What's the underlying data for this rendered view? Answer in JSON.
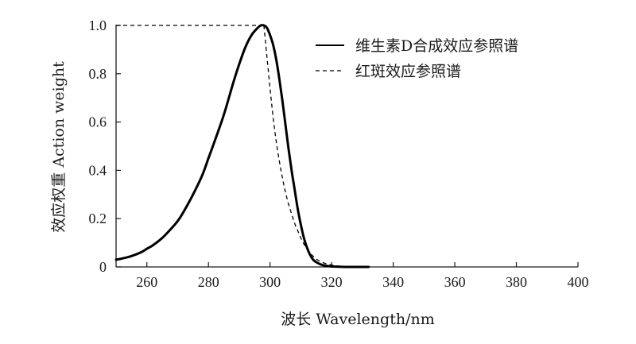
{
  "chart_data": {
    "type": "line",
    "title": "",
    "xlabel": "波长 Wavelength/nm",
    "ylabel": "效应权重  Action weight",
    "xlim": [
      250,
      400
    ],
    "ylim": [
      0,
      1.0
    ],
    "x_ticks": [
      "260",
      "280",
      "300",
      "320",
      "340",
      "360",
      "380",
      "400"
    ],
    "y_ticks": [
      "0",
      "0.2",
      "0.4",
      "0.6",
      "0.8",
      "1.0"
    ],
    "grid": false,
    "legend_position": "top-right",
    "series": [
      {
        "name": "维生素D合成效应参照谱",
        "style": "solid",
        "color": "#000000",
        "x": [
          250,
          252,
          255,
          258,
          260,
          262,
          265,
          268,
          270,
          272,
          275,
          278,
          280,
          282,
          285,
          288,
          290,
          292,
          294,
          296,
          297,
          298,
          299,
          300,
          301,
          302,
          303,
          304,
          305,
          306,
          307,
          308,
          309,
          310,
          311,
          312,
          313,
          314,
          315,
          316,
          317,
          318,
          320,
          322,
          325,
          328,
          330,
          332
        ],
        "y": [
          0.03,
          0.035,
          0.045,
          0.06,
          0.075,
          0.09,
          0.12,
          0.16,
          0.19,
          0.23,
          0.3,
          0.38,
          0.45,
          0.52,
          0.63,
          0.76,
          0.84,
          0.91,
          0.96,
          0.99,
          1.0,
          1.0,
          0.99,
          0.96,
          0.92,
          0.86,
          0.78,
          0.69,
          0.59,
          0.49,
          0.4,
          0.32,
          0.24,
          0.175,
          0.12,
          0.08,
          0.05,
          0.03,
          0.02,
          0.013,
          0.008,
          0.005,
          0.002,
          0.001,
          0.0,
          0.0,
          0.0,
          0.0
        ]
      },
      {
        "name": "红斑效应参照谱",
        "style": "dashed",
        "color": "#000000",
        "x": [
          250,
          260,
          270,
          280,
          290,
          295,
          298,
          299,
          300,
          301,
          302,
          303,
          304,
          305,
          306,
          307,
          308,
          309,
          310,
          311,
          312,
          313,
          314,
          315,
          316,
          318,
          320,
          322,
          325,
          328,
          330
        ],
        "y": [
          1.0,
          1.0,
          1.0,
          1.0,
          1.0,
          1.0,
          1.0,
          0.87,
          0.74,
          0.62,
          0.52,
          0.44,
          0.37,
          0.31,
          0.26,
          0.22,
          0.18,
          0.15,
          0.12,
          0.095,
          0.075,
          0.058,
          0.044,
          0.033,
          0.025,
          0.014,
          0.008,
          0.004,
          0.002,
          0.001,
          0.0
        ],
        "draw_from_x": 298
      }
    ]
  },
  "colors": {
    "axis": "#1a1a1a",
    "background": "#ffffff"
  }
}
